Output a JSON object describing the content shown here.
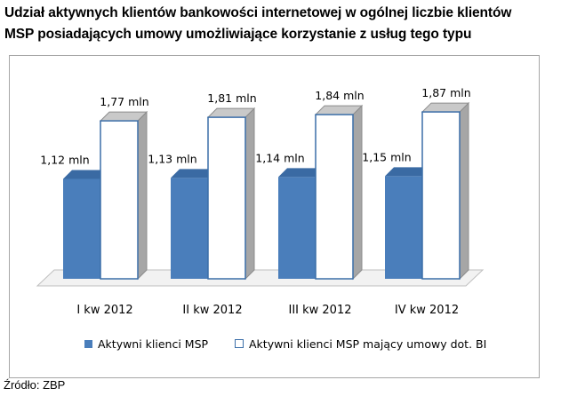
{
  "title": {
    "line1": "Udział aktywnych klientów bankowości internetowej w ogólnej liczbie klientów",
    "line2": "MSP posiadających umowy umożliwiające korzystanie z usług tego typu"
  },
  "source": "Źródło: ZBP",
  "chart_data": {
    "type": "bar",
    "style": "3d-clustered-column",
    "categories": [
      "I kw 2012",
      "II kw 2012",
      "III kw 2012",
      "IV kw 2012"
    ],
    "series": [
      {
        "name": "Aktywni klienci MSP",
        "values": [
          1.12,
          1.13,
          1.14,
          1.15
        ],
        "labels": [
          "1,12 mln",
          "1,13 mln",
          "1,14 mln",
          "1,15 mln"
        ],
        "color": "#4a7ebb"
      },
      {
        "name": "Aktywni klienci MSP mający umowy dot. BI",
        "values": [
          1.77,
          1.81,
          1.84,
          1.87
        ],
        "labels": [
          "1,77 mln",
          "1,81 mln",
          "1,84 mln",
          "1,87 mln"
        ],
        "color": "#ffffff"
      }
    ],
    "ylim": [
      0,
      2
    ],
    "grid": false,
    "legend": "bottom"
  }
}
